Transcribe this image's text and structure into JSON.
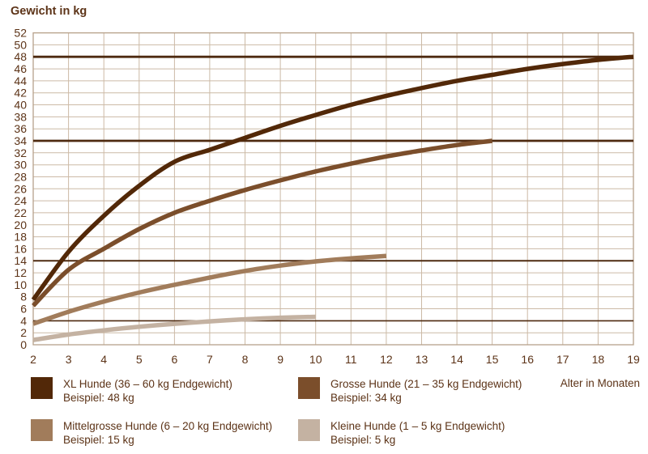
{
  "title": "Gewicht in kg",
  "x_axis_label": "Alter in Monaten",
  "colors": {
    "text": "#5c3317",
    "grid": "#ccbaa6",
    "border": "#b7a28b",
    "reference_line": "#4e2a10"
  },
  "chart_data": {
    "type": "line",
    "title": "Gewicht in kg",
    "xlabel": "Alter in Monaten",
    "ylabel": "Gewicht in kg",
    "xlim": [
      2,
      19
    ],
    "ylim": [
      0,
      52
    ],
    "x_ticks": [
      2,
      3,
      4,
      5,
      6,
      7,
      8,
      9,
      10,
      11,
      12,
      13,
      14,
      15,
      16,
      17,
      18,
      19
    ],
    "y_ticks": [
      0,
      2,
      4,
      6,
      8,
      10,
      12,
      14,
      16,
      18,
      20,
      22,
      24,
      26,
      28,
      30,
      32,
      34,
      36,
      38,
      40,
      42,
      44,
      46,
      48,
      50,
      52
    ],
    "grid": true,
    "legend_position": "bottom",
    "reference_lines_kg": [
      48,
      34,
      14,
      4
    ],
    "series": [
      {
        "name": "XL Hunde (36 – 60 kg Endgewicht)",
        "example_final_weight_kg": 48,
        "color": "#522808",
        "points": [
          [
            2,
            7.5
          ],
          [
            3,
            15.5
          ],
          [
            4,
            21.5
          ],
          [
            5,
            26.5
          ],
          [
            6,
            30.5
          ],
          [
            7,
            32.5
          ],
          [
            8,
            34.5
          ],
          [
            9,
            36.5
          ],
          [
            10,
            38.3
          ],
          [
            11,
            40
          ],
          [
            12,
            41.5
          ],
          [
            13,
            42.8
          ],
          [
            14,
            44
          ],
          [
            15,
            45
          ],
          [
            16,
            46
          ],
          [
            17,
            46.8
          ],
          [
            18,
            47.5
          ],
          [
            19,
            48
          ]
        ]
      },
      {
        "name": "Grosse Hunde (21 – 35 kg Endgewicht)",
        "example_final_weight_kg": 34,
        "color": "#7b4e2b",
        "points": [
          [
            2,
            6.5
          ],
          [
            3,
            12.5
          ],
          [
            4,
            16
          ],
          [
            5,
            19.3
          ],
          [
            6,
            22
          ],
          [
            7,
            24
          ],
          [
            8,
            25.8
          ],
          [
            9,
            27.4
          ],
          [
            10,
            28.9
          ],
          [
            11,
            30.2
          ],
          [
            12,
            31.4
          ],
          [
            13,
            32.4
          ],
          [
            14,
            33.3
          ],
          [
            15,
            34
          ]
        ]
      },
      {
        "name": "Mittelgrosse Hunde (6 – 20 kg Endgewicht)",
        "example_final_weight_kg": 15,
        "color": "#a17c5b",
        "points": [
          [
            2,
            3.5
          ],
          [
            3,
            5.5
          ],
          [
            4,
            7.2
          ],
          [
            5,
            8.7
          ],
          [
            6,
            10
          ],
          [
            7,
            11.2
          ],
          [
            8,
            12.3
          ],
          [
            9,
            13.2
          ],
          [
            10,
            13.9
          ],
          [
            11,
            14.4
          ],
          [
            12,
            14.8
          ]
        ]
      },
      {
        "name": "Kleine Hunde (1 – 5 kg Endgewicht)",
        "example_final_weight_kg": 5,
        "color": "#c4b2a2",
        "points": [
          [
            2,
            0.8
          ],
          [
            3,
            1.7
          ],
          [
            4,
            2.4
          ],
          [
            5,
            3
          ],
          [
            6,
            3.5
          ],
          [
            7,
            3.9
          ],
          [
            8,
            4.25
          ],
          [
            9,
            4.5
          ],
          [
            10,
            4.65
          ]
        ]
      }
    ]
  },
  "legend": {
    "items": [
      {
        "label": "XL Hunde (36 – 60 kg Endgewicht)",
        "example": "Beispiel: 48 kg",
        "color": "#522808"
      },
      {
        "label": "Grosse Hunde (21 – 35 kg Endgewicht)",
        "example": "Beispiel: 34 kg",
        "color": "#7b4e2b"
      },
      {
        "label": "Mittelgrosse Hunde (6 – 20 kg Endgewicht)",
        "example": "Beispiel: 15 kg",
        "color": "#a17c5b"
      },
      {
        "label": "Kleine Hunde (1 – 5 kg Endgewicht)",
        "example": "Beispiel: 5 kg",
        "color": "#c4b2a2"
      }
    ]
  }
}
